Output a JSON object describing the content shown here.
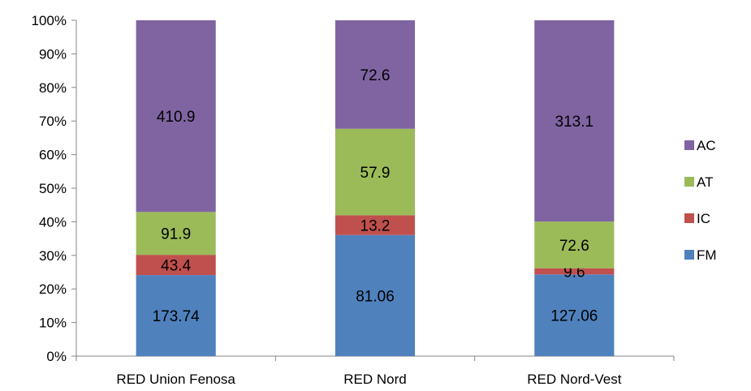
{
  "chart_data": {
    "type": "bar",
    "stacked": "percent",
    "categories": [
      "RED Union Fenosa",
      "RED Nord",
      "RED Nord-Vest"
    ],
    "series": [
      {
        "name": "FM",
        "values": [
          173.74,
          81.06,
          127.06
        ],
        "labels": [
          "173.74",
          "81.06",
          "127.06"
        ],
        "color": "#4F81BD"
      },
      {
        "name": "IC",
        "values": [
          43.4,
          13.2,
          9.6
        ],
        "labels": [
          "43.4",
          "13.2",
          "9.6"
        ],
        "color": "#C0504D"
      },
      {
        "name": "AT",
        "values": [
          91.9,
          57.9,
          72.6
        ],
        "labels": [
          "91.9",
          "57.9",
          "72.6"
        ],
        "color": "#9BBB59"
      },
      {
        "name": "AC",
        "values": [
          410.9,
          72.6,
          313.1
        ],
        "labels": [
          "410.9",
          "72.6",
          "313.1"
        ],
        "color": "#8064A2"
      }
    ],
    "yticks": [
      "0%",
      "10%",
      "20%",
      "30%",
      "40%",
      "50%",
      "60%",
      "70%",
      "80%",
      "90%",
      "100%"
    ],
    "ylim": [
      0,
      100
    ],
    "grid": false,
    "legend": "right",
    "legend_order": [
      "AC",
      "AT",
      "IC",
      "FM"
    ]
  }
}
